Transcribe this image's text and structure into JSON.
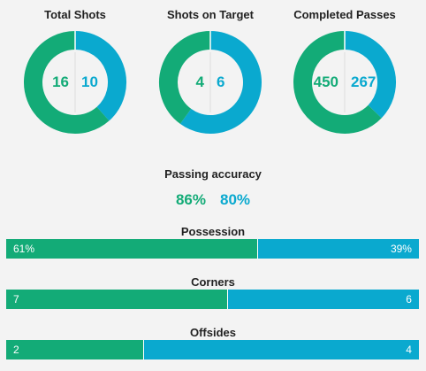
{
  "colors": {
    "home": "#13ab77",
    "away": "#0aa9cf",
    "divider": "#e5e5e5"
  },
  "donuts": [
    {
      "title": "Total Shots",
      "home": 16,
      "away": 10
    },
    {
      "title": "Shots on Target",
      "home": 4,
      "away": 6
    },
    {
      "title": "Completed Passes",
      "home": 450,
      "away": 267
    }
  ],
  "passing_accuracy": {
    "title": "Passing accuracy",
    "home": "86%",
    "away": "80%"
  },
  "bars": [
    {
      "title": "Possession",
      "home_label": "61%",
      "away_label": "39%",
      "home_share": 0.61
    },
    {
      "title": "Corners",
      "home_label": "7",
      "away_label": "6",
      "home_share": 0.5385
    },
    {
      "title": "Offsides",
      "home_label": "2",
      "away_label": "4",
      "home_share": 0.3333
    }
  ]
}
